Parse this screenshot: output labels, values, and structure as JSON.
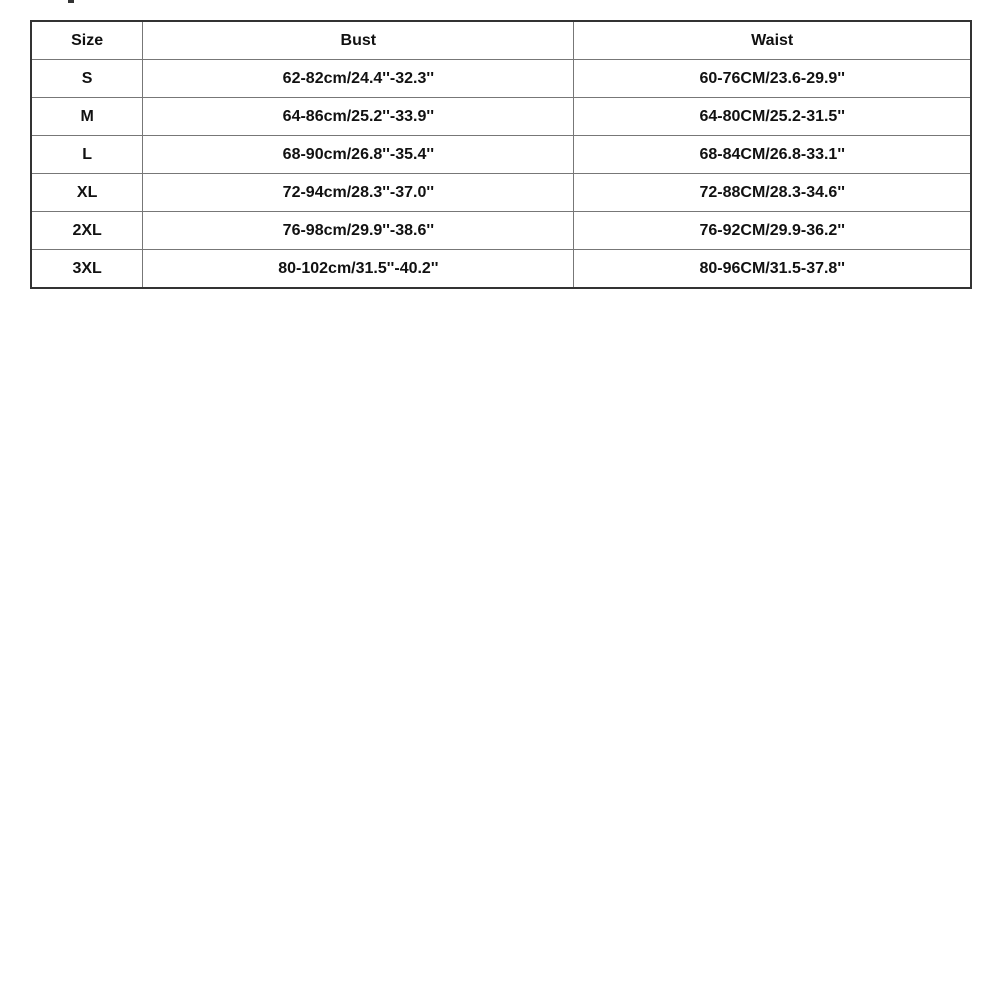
{
  "table": {
    "headers": [
      "Size",
      "Bust",
      "Waist"
    ],
    "rows": [
      {
        "size": "S",
        "bust": "62-82cm/24.4''-32.3''",
        "waist": "60-76CM/23.6-29.9''"
      },
      {
        "size": "M",
        "bust": "64-86cm/25.2''-33.9''",
        "waist": "64-80CM/25.2-31.5''"
      },
      {
        "size": "L",
        "bust": "68-90cm/26.8''-35.4''",
        "waist": "68-84CM/26.8-33.1''"
      },
      {
        "size": "XL",
        "bust": "72-94cm/28.3''-37.0''",
        "waist": "72-88CM/28.3-34.6''"
      },
      {
        "size": "2XL",
        "bust": "76-98cm/29.9''-38.6''",
        "waist": "76-92CM/29.9-36.2''"
      },
      {
        "size": "3XL",
        "bust": "80-102cm/31.5''-40.2''",
        "waist": "80-96CM/31.5-37.8''"
      }
    ]
  }
}
